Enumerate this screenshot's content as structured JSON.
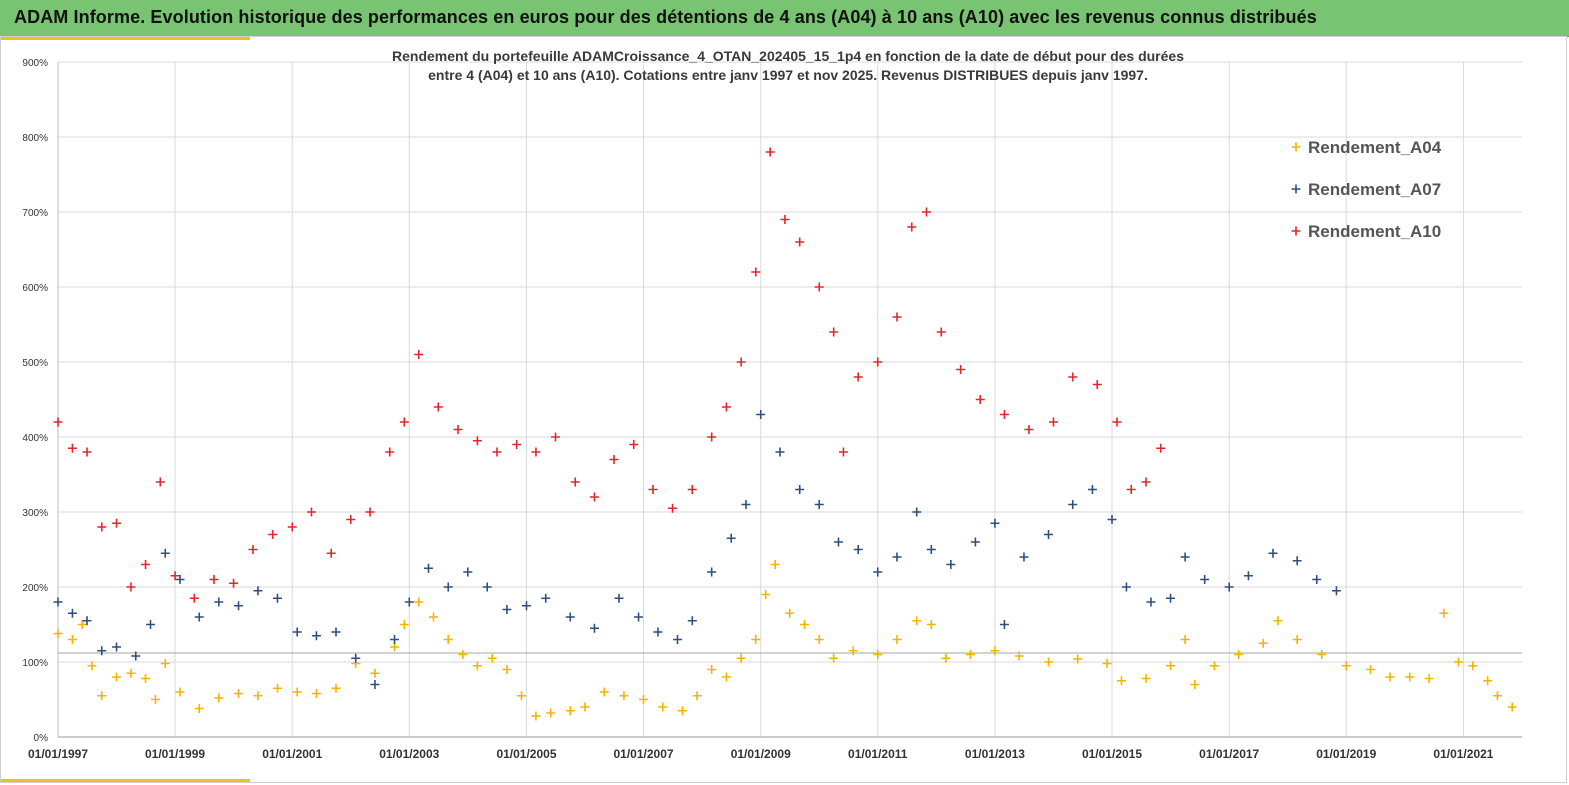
{
  "header": {
    "title": "ADAM Informe. Evolution historique des performances en euros pour des détentions de 4 ans (A04) à 10 ans (A10) avec les revenus connus distribués"
  },
  "colors": {
    "banner": "#78c472",
    "accent": "#f2c01a",
    "A04": "#f4b400",
    "A07": "#2f4f82",
    "A10": "#e3262a"
  },
  "chart_data": {
    "type": "scatter",
    "title_lines": [
      "Rendement du portefeuille ADAMCroissance_4_OTAN_202405_15_1p4  en fonction de la date de début pour des durées",
      "entre 4 (A04) et 10 ans (A10). Cotations entre janv 1997 et nov 2025. Revenus DISTRIBUES depuis janv 1997."
    ],
    "xlabel": "",
    "ylabel": "",
    "x_range": [
      "1997-01-01",
      "2021-11-01"
    ],
    "ylim": [
      0,
      900
    ],
    "y_unit": "%",
    "y_ticks": [
      "0%",
      "100%",
      "200%",
      "300%",
      "400%",
      "500%",
      "600%",
      "700%",
      "800%",
      "900%"
    ],
    "x_ticks": [
      "01/01/1997",
      "01/01/1999",
      "01/01/2001",
      "01/01/2003",
      "01/01/2005",
      "01/01/2007",
      "01/01/2009",
      "01/01/2011",
      "01/01/2013",
      "01/01/2015",
      "01/01/2017",
      "01/01/2019",
      "01/01/2021"
    ],
    "grid": true,
    "legend_position": "top-right",
    "reference_line_y": 112,
    "series": [
      {
        "name": "Rendement_A04",
        "color": "#f4b400",
        "points": [
          [
            "1997-01-01",
            138
          ],
          [
            "1997-04-01",
            130
          ],
          [
            "1997-06-01",
            150
          ],
          [
            "1997-08-01",
            95
          ],
          [
            "1997-10-01",
            55
          ],
          [
            "1998-01-01",
            80
          ],
          [
            "1998-04-01",
            85
          ],
          [
            "1998-07-01",
            78
          ],
          [
            "1998-09-01",
            50
          ],
          [
            "1998-11-01",
            98
          ],
          [
            "1999-02-01",
            60
          ],
          [
            "1999-06-01",
            38
          ],
          [
            "1999-10-01",
            52
          ],
          [
            "2000-02-01",
            58
          ],
          [
            "2000-06-01",
            55
          ],
          [
            "2000-10-01",
            65
          ],
          [
            "2001-02-01",
            60
          ],
          [
            "2001-06-01",
            58
          ],
          [
            "2001-10-01",
            65
          ],
          [
            "2002-02-01",
            98
          ],
          [
            "2002-06-01",
            85
          ],
          [
            "2002-10-01",
            120
          ],
          [
            "2002-12-01",
            150
          ],
          [
            "2003-03-01",
            180
          ],
          [
            "2003-06-01",
            160
          ],
          [
            "2003-09-01",
            130
          ],
          [
            "2003-12-01",
            110
          ],
          [
            "2004-03-01",
            95
          ],
          [
            "2004-06-01",
            105
          ],
          [
            "2004-09-01",
            90
          ],
          [
            "2004-12-01",
            55
          ],
          [
            "2005-03-01",
            28
          ],
          [
            "2005-06-01",
            32
          ],
          [
            "2005-10-01",
            35
          ],
          [
            "2006-01-01",
            40
          ],
          [
            "2006-05-01",
            60
          ],
          [
            "2006-09-01",
            55
          ],
          [
            "2007-01-01",
            50
          ],
          [
            "2007-05-01",
            40
          ],
          [
            "2007-09-01",
            35
          ],
          [
            "2007-12-01",
            55
          ],
          [
            "2008-03-01",
            90
          ],
          [
            "2008-06-01",
            80
          ],
          [
            "2008-09-01",
            105
          ],
          [
            "2008-12-01",
            130
          ],
          [
            "2009-02-01",
            190
          ],
          [
            "2009-04-01",
            230
          ],
          [
            "2009-07-01",
            165
          ],
          [
            "2009-10-01",
            150
          ],
          [
            "2010-01-01",
            130
          ],
          [
            "2010-04-01",
            105
          ],
          [
            "2010-08-01",
            115
          ],
          [
            "2011-01-01",
            110
          ],
          [
            "2011-05-01",
            130
          ],
          [
            "2011-09-01",
            155
          ],
          [
            "2011-12-01",
            150
          ],
          [
            "2012-03-01",
            105
          ],
          [
            "2012-08-01",
            110
          ],
          [
            "2013-01-01",
            115
          ],
          [
            "2013-06-01",
            108
          ],
          [
            "2013-12-01",
            100
          ],
          [
            "2014-06-01",
            104
          ],
          [
            "2014-12-01",
            98
          ],
          [
            "2015-03-01",
            75
          ],
          [
            "2015-08-01",
            78
          ],
          [
            "2016-01-01",
            95
          ],
          [
            "2016-04-01",
            130
          ],
          [
            "2016-06-01",
            70
          ],
          [
            "2016-10-01",
            95
          ],
          [
            "2017-03-01",
            110
          ],
          [
            "2017-08-01",
            125
          ],
          [
            "2017-11-01",
            155
          ],
          [
            "2018-03-01",
            130
          ],
          [
            "2018-08-01",
            110
          ],
          [
            "2019-01-01",
            95
          ],
          [
            "2019-06-01",
            90
          ],
          [
            "2019-10-01",
            80
          ],
          [
            "2020-02-01",
            80
          ],
          [
            "2020-06-01",
            78
          ],
          [
            "2020-09-01",
            165
          ],
          [
            "2020-12-01",
            100
          ],
          [
            "2021-03-01",
            95
          ],
          [
            "2021-06-01",
            75
          ],
          [
            "2021-08-01",
            55
          ],
          [
            "2021-11-01",
            40
          ]
        ]
      },
      {
        "name": "Rendement_A07",
        "color": "#2f4f82",
        "points": [
          [
            "1997-01-01",
            180
          ],
          [
            "1997-04-01",
            165
          ],
          [
            "1997-07-01",
            155
          ],
          [
            "1997-10-01",
            115
          ],
          [
            "1998-01-01",
            120
          ],
          [
            "1998-05-01",
            108
          ],
          [
            "1998-08-01",
            150
          ],
          [
            "1998-11-01",
            245
          ],
          [
            "1999-02-01",
            210
          ],
          [
            "1999-06-01",
            160
          ],
          [
            "1999-10-01",
            180
          ],
          [
            "2000-02-01",
            175
          ],
          [
            "2000-06-01",
            195
          ],
          [
            "2000-10-01",
            185
          ],
          [
            "2001-02-01",
            140
          ],
          [
            "2001-06-01",
            135
          ],
          [
            "2001-10-01",
            140
          ],
          [
            "2002-02-01",
            105
          ],
          [
            "2002-06-01",
            70
          ],
          [
            "2002-10-01",
            130
          ],
          [
            "2003-01-01",
            180
          ],
          [
            "2003-05-01",
            225
          ],
          [
            "2003-09-01",
            200
          ],
          [
            "2004-01-01",
            220
          ],
          [
            "2004-05-01",
            200
          ],
          [
            "2004-09-01",
            170
          ],
          [
            "2005-01-01",
            175
          ],
          [
            "2005-05-01",
            185
          ],
          [
            "2005-10-01",
            160
          ],
          [
            "2006-03-01",
            145
          ],
          [
            "2006-08-01",
            185
          ],
          [
            "2006-12-01",
            160
          ],
          [
            "2007-04-01",
            140
          ],
          [
            "2007-08-01",
            130
          ],
          [
            "2007-11-01",
            155
          ],
          [
            "2008-03-01",
            220
          ],
          [
            "2008-07-01",
            265
          ],
          [
            "2008-10-01",
            310
          ],
          [
            "2009-01-01",
            430
          ],
          [
            "2009-05-01",
            380
          ],
          [
            "2009-09-01",
            330
          ],
          [
            "2010-01-01",
            310
          ],
          [
            "2010-05-01",
            260
          ],
          [
            "2010-09-01",
            250
          ],
          [
            "2011-01-01",
            220
          ],
          [
            "2011-05-01",
            240
          ],
          [
            "2011-09-01",
            300
          ],
          [
            "2011-12-01",
            250
          ],
          [
            "2012-04-01",
            230
          ],
          [
            "2012-09-01",
            260
          ],
          [
            "2013-01-01",
            285
          ],
          [
            "2013-03-01",
            150
          ],
          [
            "2013-07-01",
            240
          ],
          [
            "2013-12-01",
            270
          ],
          [
            "2014-05-01",
            310
          ],
          [
            "2014-09-01",
            330
          ],
          [
            "2015-01-01",
            290
          ],
          [
            "2015-04-01",
            200
          ],
          [
            "2015-09-01",
            180
          ],
          [
            "2016-01-01",
            185
          ],
          [
            "2016-04-01",
            240
          ],
          [
            "2016-08-01",
            210
          ],
          [
            "2017-01-01",
            200
          ],
          [
            "2017-05-01",
            215
          ],
          [
            "2017-10-01",
            245
          ],
          [
            "2018-03-01",
            235
          ],
          [
            "2018-07-01",
            210
          ],
          [
            "2018-11-01",
            195
          ]
        ]
      },
      {
        "name": "Rendement_A10",
        "color": "#e3262a",
        "points": [
          [
            "1997-01-01",
            420
          ],
          [
            "1997-04-01",
            385
          ],
          [
            "1997-07-01",
            380
          ],
          [
            "1997-10-01",
            280
          ],
          [
            "1998-01-01",
            285
          ],
          [
            "1998-04-01",
            200
          ],
          [
            "1998-07-01",
            230
          ],
          [
            "1998-10-01",
            340
          ],
          [
            "1999-01-01",
            215
          ],
          [
            "1999-05-01",
            185
          ],
          [
            "1999-09-01",
            210
          ],
          [
            "2000-01-01",
            205
          ],
          [
            "2000-05-01",
            250
          ],
          [
            "2000-09-01",
            270
          ],
          [
            "2001-01-01",
            280
          ],
          [
            "2001-05-01",
            300
          ],
          [
            "2001-09-01",
            245
          ],
          [
            "2002-01-01",
            290
          ],
          [
            "2002-05-01",
            300
          ],
          [
            "2002-09-01",
            380
          ],
          [
            "2002-12-01",
            420
          ],
          [
            "2003-03-01",
            510
          ],
          [
            "2003-07-01",
            440
          ],
          [
            "2003-11-01",
            410
          ],
          [
            "2004-03-01",
            395
          ],
          [
            "2004-07-01",
            380
          ],
          [
            "2004-11-01",
            390
          ],
          [
            "2005-03-01",
            380
          ],
          [
            "2005-07-01",
            400
          ],
          [
            "2005-11-01",
            340
          ],
          [
            "2006-03-01",
            320
          ],
          [
            "2006-07-01",
            370
          ],
          [
            "2006-11-01",
            390
          ],
          [
            "2007-03-01",
            330
          ],
          [
            "2007-07-01",
            305
          ],
          [
            "2007-11-01",
            330
          ],
          [
            "2008-03-01",
            400
          ],
          [
            "2008-06-01",
            440
          ],
          [
            "2008-09-01",
            500
          ],
          [
            "2008-12-01",
            620
          ],
          [
            "2009-03-01",
            780
          ],
          [
            "2009-06-01",
            690
          ],
          [
            "2009-09-01",
            660
          ],
          [
            "2010-01-01",
            600
          ],
          [
            "2010-04-01",
            540
          ],
          [
            "2010-06-01",
            380
          ],
          [
            "2010-09-01",
            480
          ],
          [
            "2011-01-01",
            500
          ],
          [
            "2011-05-01",
            560
          ],
          [
            "2011-08-01",
            680
          ],
          [
            "2011-11-01",
            700
          ],
          [
            "2012-02-01",
            540
          ],
          [
            "2012-06-01",
            490
          ],
          [
            "2012-10-01",
            450
          ],
          [
            "2013-03-01",
            430
          ],
          [
            "2013-08-01",
            410
          ],
          [
            "2014-01-01",
            420
          ],
          [
            "2014-05-01",
            480
          ],
          [
            "2014-10-01",
            470
          ],
          [
            "2015-02-01",
            420
          ],
          [
            "2015-05-01",
            330
          ],
          [
            "2015-08-01",
            340
          ],
          [
            "2015-11-01",
            385
          ]
        ]
      }
    ],
    "legend": [
      "Rendement_A04",
      "Rendement_A07",
      "Rendement_A10"
    ]
  }
}
